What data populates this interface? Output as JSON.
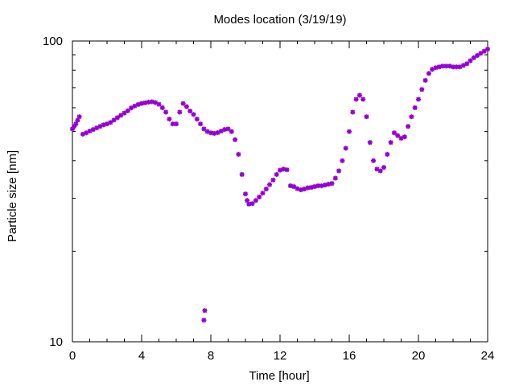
{
  "chart_data": {
    "type": "scatter",
    "title": "Modes location (3/19/19)",
    "xlabel": "Time [hour]",
    "ylabel": "Particle size [nm]",
    "xlim": [
      0,
      24
    ],
    "ylim": [
      10,
      100
    ],
    "yscale": "log",
    "grid": false,
    "legend": "none",
    "xticks": [
      0,
      4,
      8,
      12,
      16,
      20,
      24
    ],
    "yticks": [
      10,
      100
    ],
    "marker": "asterisk",
    "color": "#9400d3",
    "series": [
      {
        "x": [
          0.0,
          0.1,
          0.2,
          0.3,
          0.4,
          0.6,
          0.8,
          1.0,
          1.2,
          1.4,
          1.6,
          1.8,
          2.0,
          2.2,
          2.4,
          2.6,
          2.8,
          3.0,
          3.2,
          3.4,
          3.6,
          3.8,
          4.0,
          4.2,
          4.4,
          4.6,
          4.8,
          5.0,
          5.2,
          5.4,
          5.6,
          5.8,
          6.0,
          6.2,
          6.4,
          6.6,
          6.8,
          7.0,
          7.2,
          7.4,
          7.6,
          7.8,
          8.0,
          8.2,
          8.4,
          8.6,
          8.8,
          9.0,
          9.2,
          9.4,
          9.6,
          9.8,
          10.0,
          10.1,
          10.2,
          10.4,
          10.6,
          10.8,
          11.0,
          11.2,
          11.4,
          11.6,
          11.8,
          12.0,
          12.2,
          12.4,
          12.6,
          12.8,
          13.0,
          13.2,
          13.4,
          13.6,
          13.8,
          14.0,
          14.2,
          14.4,
          14.6,
          14.8,
          15.0,
          15.2,
          15.4,
          15.6,
          15.8,
          16.0,
          16.2,
          16.4,
          16.6,
          16.8,
          17.0,
          17.2,
          17.4,
          17.6,
          17.8,
          18.0,
          18.2,
          18.4,
          18.6,
          18.8,
          19.0,
          19.2,
          19.4,
          19.6,
          19.8,
          20.0,
          20.2,
          20.4,
          20.6,
          20.8,
          21.0,
          21.2,
          21.4,
          21.6,
          21.8,
          22.0,
          22.2,
          22.4,
          22.6,
          22.8,
          23.0,
          23.2,
          23.4,
          23.6,
          23.8,
          24.0,
          7.6,
          7.65
        ],
        "y": [
          51.0,
          52.0,
          53.0,
          54.5,
          56.0,
          49.0,
          49.5,
          50.2,
          50.8,
          51.4,
          52.0,
          52.6,
          53.0,
          53.6,
          54.6,
          55.6,
          56.6,
          57.6,
          58.6,
          59.9,
          60.8,
          61.5,
          62.0,
          62.3,
          62.6,
          62.8,
          62.4,
          61.6,
          60.0,
          58.0,
          55.0,
          53.0,
          53.0,
          58.0,
          62.0,
          60.5,
          58.5,
          57.0,
          55.0,
          53.0,
          51.0,
          50.0,
          49.5,
          49.3,
          49.6,
          50.2,
          50.8,
          51.0,
          50.0,
          47.0,
          42.0,
          36.0,
          31.0,
          29.5,
          28.7,
          28.8,
          29.5,
          30.3,
          31.2,
          32.2,
          33.3,
          34.5,
          36.0,
          37.2,
          37.5,
          37.3,
          33.0,
          32.8,
          32.3,
          32.0,
          32.2,
          32.5,
          32.6,
          32.8,
          33.0,
          33.0,
          33.2,
          33.4,
          33.6,
          35.0,
          37.0,
          40.0,
          44.0,
          50.0,
          58.0,
          64.0,
          66.0,
          64.0,
          56.0,
          46.0,
          40.0,
          37.5,
          37.0,
          38.0,
          42.0,
          46.0,
          49.5,
          48.5,
          47.5,
          48.0,
          52.0,
          56.0,
          60.0,
          64.0,
          69.0,
          74.0,
          78.0,
          80.5,
          81.5,
          82.0,
          82.5,
          82.5,
          82.5,
          82.0,
          82.0,
          82.0,
          83.0,
          84.0,
          86.0,
          88.0,
          89.5,
          91.0,
          92.5,
          94.0,
          11.8,
          12.7
        ]
      }
    ]
  }
}
